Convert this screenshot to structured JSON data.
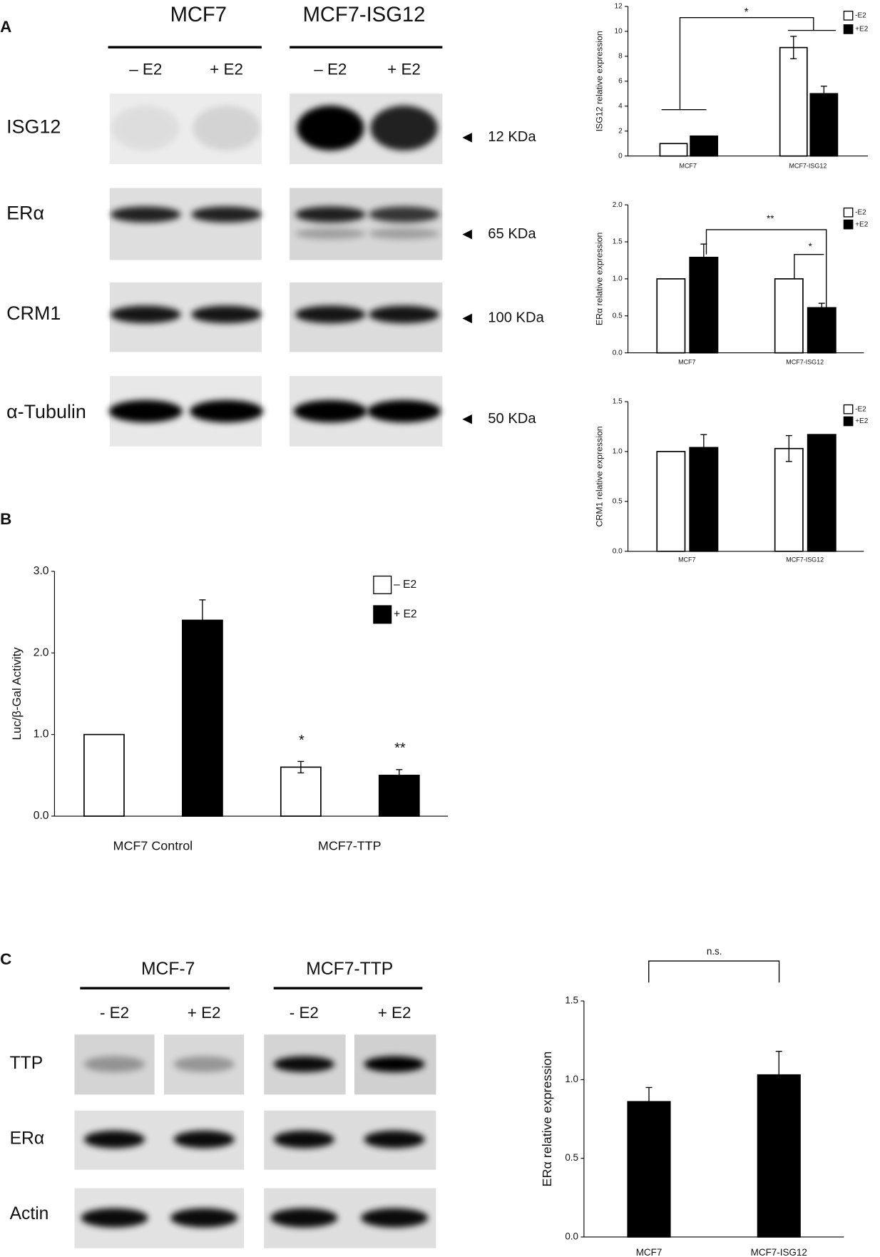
{
  "panel_labels": [
    "A",
    "B",
    "C"
  ],
  "blot_a": {
    "groups": [
      "MCF7",
      "MCF7-ISG12"
    ],
    "lanes": [
      "– E2",
      "+ E2",
      "– E2",
      "+ E2"
    ],
    "rows": [
      "ISG12",
      "ERα",
      "CRM1",
      "α-Tubulin"
    ],
    "sizes": [
      "12 KDa",
      "65 KDa",
      "100 KDa",
      "50 KDa"
    ]
  },
  "blot_c": {
    "groups": [
      "MCF-7",
      "MCF7-TTP"
    ],
    "lanes": [
      "- E2",
      "+ E2",
      "- E2",
      "+ E2"
    ],
    "rows": [
      "TTP",
      "ERα",
      "Actin"
    ]
  },
  "chart_data": [
    {
      "type": "bar",
      "y_label": "ISG12 relative expression",
      "categories": [
        "MCF7",
        "MCF7-ISG12"
      ],
      "series": [
        {
          "name": "-E2",
          "color": "#ffffff",
          "values": [
            1.0,
            8.7
          ],
          "errors": [
            null,
            0.9
          ]
        },
        {
          "name": "+E2",
          "color": "#000000",
          "values": [
            1.6,
            5.0
          ],
          "errors": [
            null,
            0.6
          ]
        }
      ],
      "ylim": [
        0,
        12
      ],
      "yticks": [
        0,
        2,
        4,
        6,
        8,
        10,
        12
      ],
      "annotations": [
        "*"
      ]
    },
    {
      "type": "bar",
      "y_label": "ERα relative expression",
      "categories": [
        "MCF7",
        "MCF7-ISG12"
      ],
      "series": [
        {
          "name": "-E2",
          "color": "#ffffff",
          "values": [
            1.0,
            1.0
          ],
          "errors": [
            null,
            null
          ]
        },
        {
          "name": "+E2",
          "color": "#000000",
          "values": [
            1.29,
            0.61
          ],
          "errors": [
            0.18,
            0.06
          ]
        }
      ],
      "ylim": [
        0,
        2
      ],
      "yticks": [
        {
          "value": 0,
          "label": "0.0"
        },
        0.5,
        {
          "value": 1,
          "label": "1.0"
        },
        1.5,
        {
          "value": 2,
          "label": "2.0"
        }
      ],
      "annotations": [
        "**",
        "*"
      ]
    },
    {
      "type": "bar",
      "y_label": "CRM1 relative expression",
      "categories": [
        "MCF7",
        "MCF7-ISG12"
      ],
      "series": [
        {
          "name": "-E2",
          "color": "#ffffff",
          "values": [
            1.0,
            1.03
          ],
          "errors": [
            null,
            0.13
          ]
        },
        {
          "name": "+E2",
          "color": "#000000",
          "values": [
            1.04,
            1.17
          ],
          "errors": [
            0.13,
            null
          ]
        }
      ],
      "ylim": [
        0,
        1.5
      ],
      "yticks": [
        {
          "value": 0,
          "label": "0.0"
        },
        0.5,
        {
          "value": 1,
          "label": "1.0"
        },
        1.5
      ],
      "annotations": []
    },
    {
      "type": "bar",
      "y_label": "Luc/β-Gal Activity",
      "categories": [
        "MCF7 Control",
        "MCF7-TTP"
      ],
      "series": [
        {
          "name": "– E2",
          "color": "#ffffff",
          "values": [
            1.0,
            0.6
          ],
          "errors": [
            null,
            0.07
          ]
        },
        {
          "name": "+ E2",
          "color": "#000000",
          "values": [
            2.4,
            0.5
          ],
          "errors": [
            0.25,
            0.07
          ]
        }
      ],
      "ylim": [
        0,
        3
      ],
      "yticks": [
        {
          "value": 0,
          "label": "0.0"
        },
        {
          "value": 1,
          "label": "1.0"
        },
        {
          "value": 2,
          "label": "2.0"
        },
        {
          "value": 3,
          "label": "3.0"
        }
      ],
      "annotations": [
        "*",
        "**"
      ]
    },
    {
      "type": "bar",
      "y_label": "ERα relative expression",
      "categories": [
        "MCF7",
        "MCF7-ISG12"
      ],
      "series": [
        {
          "color": "#000000",
          "values": [
            0.86,
            1.03
          ],
          "errors": [
            0.09,
            0.15
          ]
        }
      ],
      "ylim": [
        0,
        1.5
      ],
      "yticks": [
        {
          "value": 0,
          "label": "0.0"
        },
        0.5,
        {
          "value": 1,
          "label": "1.0"
        },
        1.5
      ],
      "annotations": [
        "n.s."
      ]
    }
  ]
}
